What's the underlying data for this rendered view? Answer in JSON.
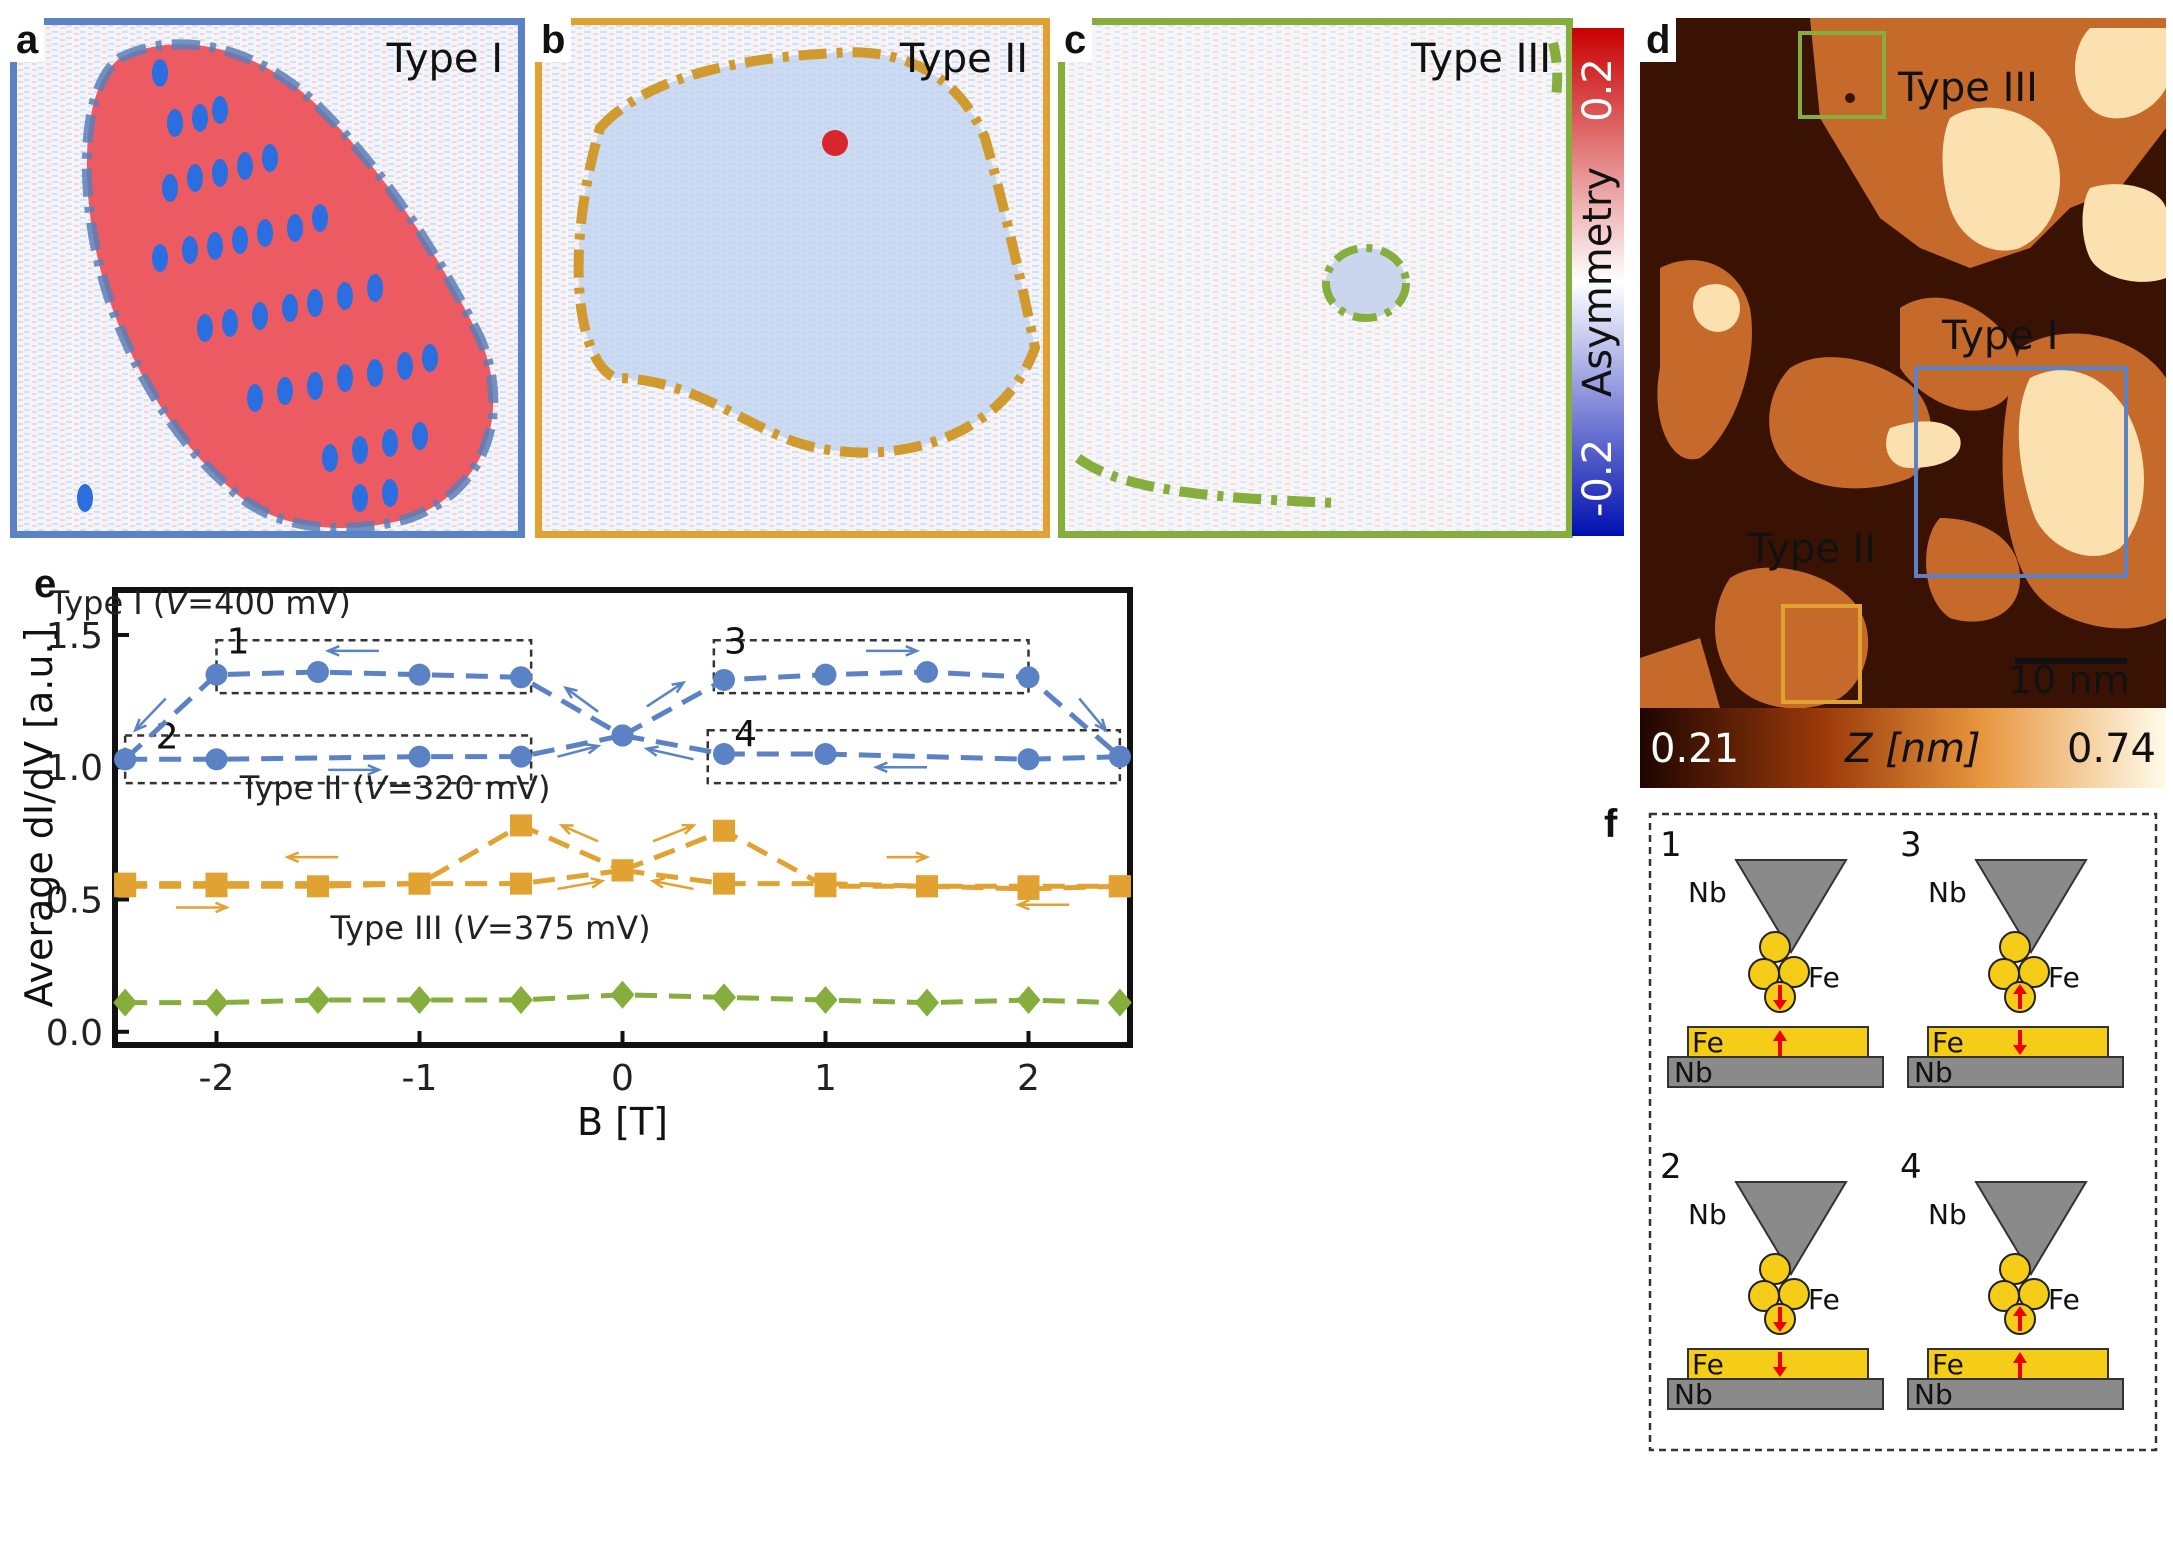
{
  "panels": {
    "a": {
      "letter": "a",
      "title": "Type I"
    },
    "b": {
      "letter": "b",
      "title": "Type II"
    },
    "c": {
      "letter": "c",
      "title": "Type III"
    },
    "d": {
      "letter": "d",
      "scalebar": "10 nm",
      "box_labels": [
        "Type III",
        "Type I",
        "Type II"
      ]
    },
    "e": {
      "letter": "e"
    },
    "f": {
      "letter": "f"
    }
  },
  "asymmetry_colorbar": {
    "label": "Asymmetry",
    "max": "0.2",
    "min": "-0.2"
  },
  "height_colorbar": {
    "min": "0.21",
    "label": "Z [nm]",
    "max": "0.74"
  },
  "colors": {
    "type1": "#5a82c4",
    "type2": "#e2a232",
    "type3": "#86ae3c"
  },
  "chart_data": {
    "type": "line",
    "xlabel": "B [T]",
    "ylabel": "Average dI/dV [a.u.]",
    "xlim": [
      -2.5,
      2.5
    ],
    "ylim": [
      -0.05,
      1.67
    ],
    "xticks": [
      -2,
      -1,
      0,
      1,
      2
    ],
    "yticks": [
      0.0,
      0.5,
      1.0,
      1.5
    ],
    "xtick_labels": [
      "-2",
      "-1",
      "0",
      "1",
      "2"
    ],
    "ytick_labels": [
      "0.0",
      "0.5",
      "1.0",
      "1.5"
    ],
    "series": [
      {
        "name": "Type I (V=400 mV)",
        "color": "#5a82c4",
        "marker": "circle",
        "dash": true,
        "branches": [
          {
            "x": [
              -2.45,
              -2,
              -1.5,
              -1,
              -0.5,
              0
            ],
            "y": [
              1.03,
              1.35,
              1.36,
              1.35,
              1.34,
              1.12
            ]
          },
          {
            "x": [
              -2.45,
              -2,
              -1,
              -0.5,
              0
            ],
            "y": [
              1.03,
              1.03,
              1.04,
              1.04,
              1.12
            ]
          },
          {
            "x": [
              0,
              0.5,
              1,
              1.5,
              2,
              2.45
            ],
            "y": [
              1.12,
              1.33,
              1.35,
              1.36,
              1.34,
              1.04
            ]
          },
          {
            "x": [
              0,
              0.5,
              1,
              2,
              2.45
            ],
            "y": [
              1.12,
              1.05,
              1.05,
              1.03,
              1.04
            ]
          }
        ]
      },
      {
        "name": "Type II (V=320 mV)",
        "color": "#e2a232",
        "marker": "square",
        "dash": true,
        "branches": [
          {
            "x": [
              -2.45,
              -2,
              -1.5,
              -1,
              -0.5,
              0
            ],
            "y": [
              0.55,
              0.55,
              0.55,
              0.56,
              0.78,
              0.61
            ]
          },
          {
            "x": [
              -2.45,
              -2,
              -1,
              -0.5,
              0
            ],
            "y": [
              0.56,
              0.56,
              0.56,
              0.56,
              0.61
            ]
          },
          {
            "x": [
              0,
              0.5,
              1,
              1.5,
              2,
              2.45
            ],
            "y": [
              0.61,
              0.76,
              0.55,
              0.55,
              0.55,
              0.55
            ]
          },
          {
            "x": [
              0,
              0.5,
              1,
              1.5,
              2,
              2.45
            ],
            "y": [
              0.61,
              0.56,
              0.56,
              0.55,
              0.54,
              0.55
            ]
          }
        ]
      },
      {
        "name": "Type III (V=375 mV)",
        "color": "#86ae3c",
        "marker": "diamond",
        "dash": true,
        "branches": [
          {
            "x": [
              -2.45,
              -2,
              -1.5,
              -1,
              -0.5,
              0,
              0.5,
              1,
              1.5,
              2,
              2.45
            ],
            "y": [
              0.11,
              0.11,
              0.12,
              0.12,
              0.12,
              0.14,
              0.13,
              0.12,
              0.11,
              0.12,
              0.11
            ]
          }
        ]
      }
    ],
    "series_labels": [
      {
        "pre": "Type I (",
        "v": "V",
        "post": "=400 mV)"
      },
      {
        "pre": "Type II (",
        "v": "V",
        "post": "=320 mV)"
      },
      {
        "pre": "Type III (",
        "v": "V",
        "post": "=375 mV)"
      }
    ],
    "state_box_labels": [
      "1",
      "2",
      "3",
      "4"
    ]
  },
  "schematic": {
    "states": [
      {
        "num": "1",
        "tip": "Nb",
        "atoms": "Fe",
        "film": "Fe",
        "substrate": "Nb",
        "tip_spin": "down",
        "film_spin": "up"
      },
      {
        "num": "3",
        "tip": "Nb",
        "atoms": "Fe",
        "film": "Fe",
        "substrate": "Nb",
        "tip_spin": "up",
        "film_spin": "down"
      },
      {
        "num": "2",
        "tip": "Nb",
        "atoms": "Fe",
        "film": "Fe",
        "substrate": "Nb",
        "tip_spin": "down",
        "film_spin": "down"
      },
      {
        "num": "4",
        "tip": "Nb",
        "atoms": "Fe",
        "film": "Fe",
        "substrate": "Nb",
        "tip_spin": "up",
        "film_spin": "up"
      }
    ]
  }
}
